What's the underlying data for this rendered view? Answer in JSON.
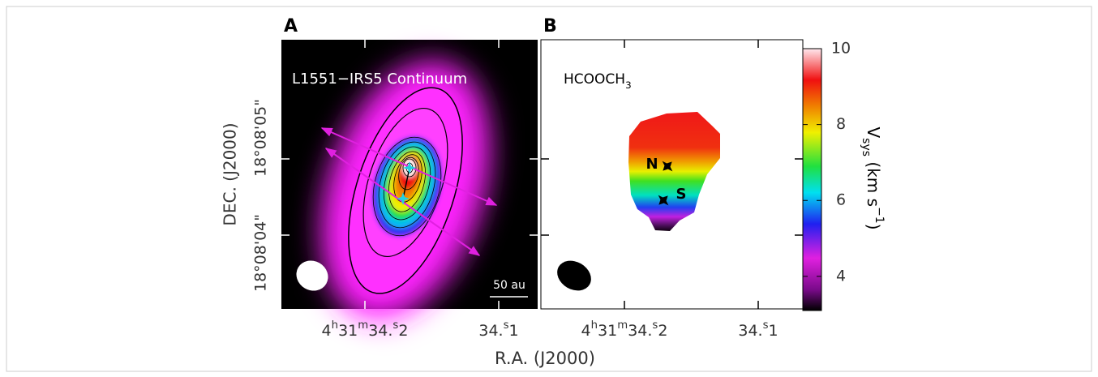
{
  "panels": [
    {
      "letter": "A",
      "label": "L1551−IRS5 Continuum",
      "scale_bar": "50 au"
    },
    {
      "letter": "B",
      "label": [
        {
          "text": "HCOOCH"
        },
        {
          "text": "3",
          "sub": true
        }
      ],
      "markers": [
        "N",
        "S"
      ]
    }
  ],
  "y_axis": {
    "title": "DEC. (J2000)",
    "tick_labels": [
      "18°08'05\"",
      "18°08'04\""
    ]
  },
  "x_axis": {
    "title": "R.A. (J2000)",
    "tick_labels": [
      [
        {
          "text": "4"
        },
        {
          "text": "h",
          "sup": true
        },
        {
          "text": "31"
        },
        {
          "text": "m",
          "sup": true
        },
        {
          "text": "34."
        },
        {
          "text": "s",
          "sup": true
        },
        {
          "text": "2"
        }
      ],
      [
        {
          "text": "34."
        },
        {
          "text": "s",
          "sup": true
        },
        {
          "text": "1"
        }
      ]
    ]
  },
  "colorbar": {
    "label": [
      {
        "text": "V"
      },
      {
        "text": "sys",
        "sub": true
      },
      {
        "text": " (km s"
      },
      {
        "text": "−1",
        "sup": true
      },
      {
        "text": ")"
      }
    ],
    "lim": [
      3.1,
      10
    ],
    "ticks": [
      4,
      6,
      8,
      10
    ]
  }
}
